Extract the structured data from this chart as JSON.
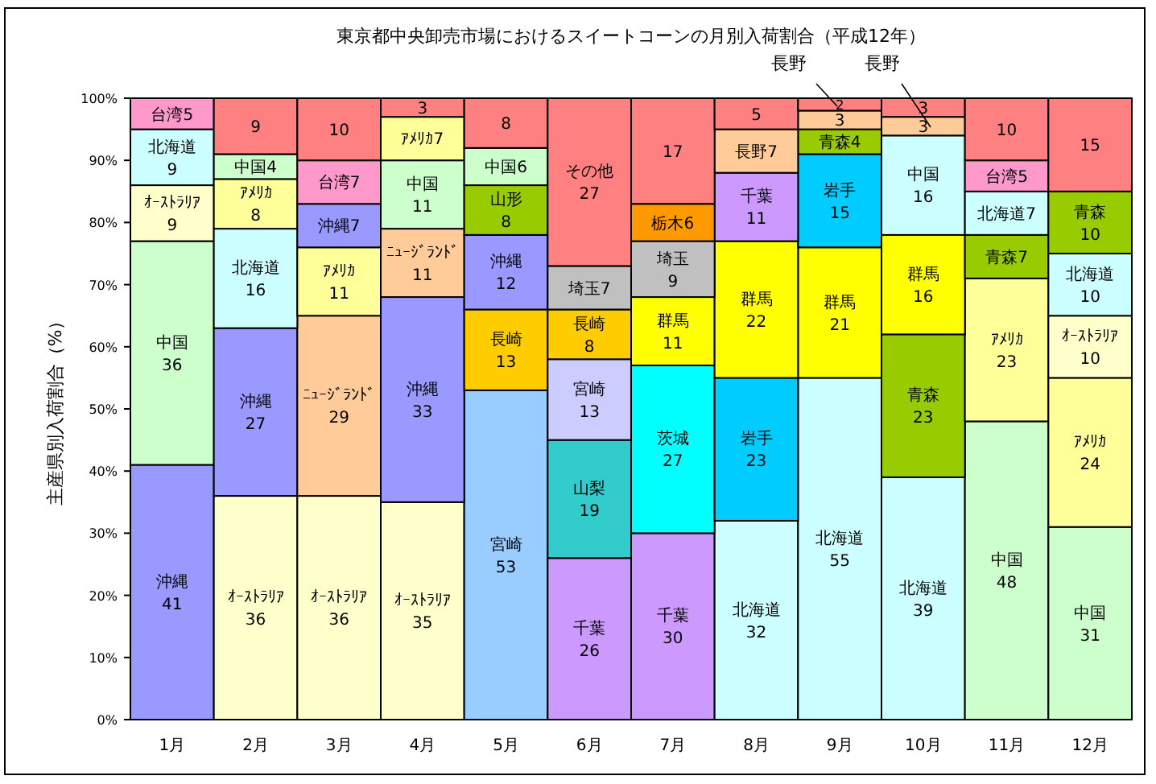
{
  "chart_data": {
    "type": "bar",
    "stacked": true,
    "title": "東京都中央卸売市場におけるスイートコーンの月別入荷割合（平成12年）",
    "ylabel": "主産県別入荷割合（%）",
    "categories": [
      "1月",
      "2月",
      "3月",
      "4月",
      "5月",
      "6月",
      "7月",
      "8月",
      "9月",
      "10月",
      "11月",
      "12月"
    ],
    "ylim": [
      0,
      100
    ],
    "yticks": [
      {
        "value": 0,
        "label": "0%"
      },
      {
        "value": 10,
        "label": "10%"
      },
      {
        "value": 20,
        "label": "20%"
      },
      {
        "value": 30,
        "label": "30%"
      },
      {
        "value": 40,
        "label": "40%"
      },
      {
        "value": 50,
        "label": "50%"
      },
      {
        "value": 60,
        "label": "60%"
      },
      {
        "value": 70,
        "label": "70%"
      },
      {
        "value": 80,
        "label": "80%"
      },
      {
        "value": 90,
        "label": "90%"
      },
      {
        "value": 100,
        "label": "100%"
      }
    ],
    "series": [
      {
        "values": [
          41,
          36,
          36,
          35,
          53,
          26,
          30,
          32,
          55,
          39,
          48,
          31
        ],
        "colors": [
          "#9999ff",
          "#ffffcc",
          "#ffffcc",
          "#ffffcc",
          "#99ccff",
          "#cc99ff",
          "#cc99ff",
          "#ccffff",
          "#ccffff",
          "#ccffff",
          "#ccffcc",
          "#ccffcc"
        ],
        "value_labels": [
          "沖縄\n41",
          "ｵｰｽﾄﾗﾘｱ\n36",
          "ｵｰｽﾄﾗﾘｱ\n36",
          "ｵｰｽﾄﾗﾘｱ\n35",
          "宮崎\n53",
          "千葉\n26",
          "千葉\n30",
          "北海道\n32",
          "北海道\n55",
          "北海道\n39",
          "中国\n48",
          "中国\n31"
        ]
      },
      {
        "values": [
          36,
          27,
          29,
          33,
          13,
          19,
          27,
          23,
          21,
          23,
          23,
          24
        ],
        "colors": [
          "#ccffcc",
          "#9999ff",
          "#ffcc99",
          "#9999ff",
          "#ffcc00",
          "#33cccc",
          "#00ffff",
          "#00ccff",
          "#ffff00",
          "#99cc00",
          "#ffff99",
          "#ffff99"
        ],
        "value_labels": [
          "中国\n36",
          "沖縄\n27",
          "ﾆｭｰｼﾞﾗﾝﾄﾞ\n29",
          "沖縄\n33",
          "長崎\n13",
          "山梨\n19",
          "茨城\n27",
          "岩手\n23",
          "群馬\n21",
          "青森\n23",
          "ｱﾒﾘｶ\n23",
          "ｱﾒﾘｶ\n24"
        ]
      },
      {
        "values": [
          9,
          16,
          11,
          11,
          12,
          13,
          11,
          22,
          15,
          16,
          7,
          10
        ],
        "colors": [
          "#ffffcc",
          "#ccffff",
          "#ffff99",
          "#ffcc99",
          "#9999ff",
          "#ccccff",
          "#ffff00",
          "#ffff00",
          "#00ccff",
          "#ffff00",
          "#99cc00",
          "#ffffcc"
        ],
        "value_labels": [
          "ｵｰｽﾄﾗﾘｱ\n9",
          "北海道\n16",
          "ｱﾒﾘｶ\n11",
          "ﾆｭｰｼﾞﾗﾝﾄﾞ\n11",
          "沖縄\n12",
          "宮崎\n13",
          "群馬\n11",
          "群馬\n22",
          "岩手\n15",
          "群馬\n16",
          "青森7",
          "ｵｰｽﾄﾗﾘｱ\n10"
        ]
      },
      {
        "values": [
          9,
          8,
          7,
          11,
          8,
          8,
          9,
          11,
          4,
          16,
          7,
          10
        ],
        "colors": [
          "#ccffff",
          "#ffff99",
          "#9999ff",
          "#ccffcc",
          "#99cc00",
          "#ffcc00",
          "#c0c0c0",
          "#cc99ff",
          "#99cc00",
          "#ccffff",
          "#ccffff",
          "#ccffff"
        ],
        "value_labels": [
          "北海道\n9",
          "ｱﾒﾘｶ\n8",
          "沖縄7",
          "中国\n11",
          "山形\n8",
          "長崎\n8",
          "埼玉\n9",
          "千葉\n11",
          "青森4",
          "中国\n16",
          "北海道7",
          "北海道\n10"
        ]
      },
      {
        "values": [
          5,
          4,
          7,
          7,
          6,
          7,
          6,
          7,
          3,
          3,
          5,
          10
        ],
        "colors": [
          "#ff99cc",
          "#ccffcc",
          "#ff99cc",
          "#ffff99",
          "#ccffcc",
          "#c0c0c0",
          "#ff9900",
          "#ffcc99",
          "#ffcc99",
          "#ffcc99",
          "#ff99cc",
          "#99cc00"
        ],
        "value_labels": [
          "台湾5",
          "中国4",
          "台湾7",
          "ｱﾒﾘｶ7",
          "中国6",
          "埼玉7",
          "栃木6",
          "長野7",
          "3",
          "3",
          "台湾5",
          "青森\n10"
        ]
      },
      {
        "values": [
          null,
          9,
          10,
          3,
          8,
          27,
          17,
          5,
          2,
          3,
          10,
          15
        ],
        "colors": [
          null,
          "#ff8080",
          "#ff8080",
          "#ff8080",
          "#ff8080",
          "#ff8080",
          "#ff8080",
          "#ff8080",
          "#ff8080",
          "#ff8080",
          "#ff8080",
          "#ff8080"
        ],
        "value_labels": [
          null,
          "9",
          "10",
          "3",
          "8",
          "その他\n27",
          "17",
          "5",
          "2",
          "3",
          "10",
          "15"
        ]
      }
    ],
    "annotations": [
      "長野",
      "長野"
    ]
  }
}
